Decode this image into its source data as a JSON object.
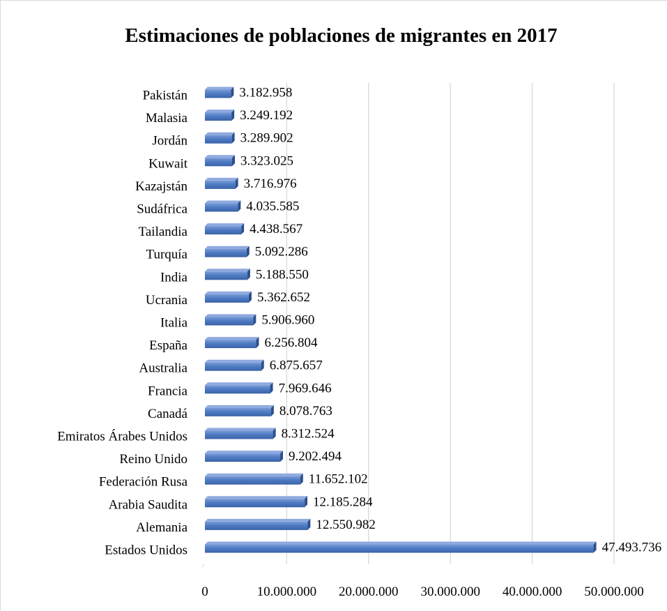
{
  "chart_data": {
    "type": "bar",
    "orientation": "horizontal",
    "title": "Estimaciones de poblaciones de migrantes en 2017",
    "xlabel": "",
    "ylabel": "",
    "xlim": [
      0,
      50000000
    ],
    "x_ticks": [
      "0",
      "10.000.000",
      "20.000.000",
      "30.000.000",
      "40.000.000",
      "50.000.000"
    ],
    "x_tick_values": [
      0,
      10000000,
      20000000,
      30000000,
      40000000,
      50000000
    ],
    "grid": true,
    "legend": "none",
    "bar_color": "#4472C4",
    "categories": [
      "Pakistán",
      "Malasia",
      "Jordán",
      "Kuwait",
      "Kazajstán",
      "Sudáfrica",
      "Tailandia",
      "Turquía",
      "India",
      "Ucrania",
      "Italia",
      "España",
      "Australia",
      "Francia",
      "Canadá",
      "Emiratos Árabes Unidos",
      "Reino Unido",
      "Federación Rusa",
      "Arabia Saudita",
      "Alemania",
      "Estados Unidos"
    ],
    "values": [
      3182958,
      3249192,
      3289902,
      3323025,
      3716976,
      4035585,
      4438567,
      5092286,
      5188550,
      5362652,
      5906960,
      6256804,
      6875657,
      7969646,
      8078763,
      8312524,
      9202494,
      11652102,
      12185284,
      12550982,
      47493736
    ],
    "data_labels": [
      "3.182.958",
      "3.249.192",
      "3.289.902",
      "3.323.025",
      "3.716.976",
      "4.035.585",
      "4.438.567",
      "5.092.286",
      "5.188.550",
      "5.362.652",
      "5.906.960",
      "6.256.804",
      "6.875.657",
      "7.969.646",
      "8.078.763",
      "8.312.524",
      "9.202.494",
      "11.652.102",
      "12.185.284",
      "12.550.982",
      "47.493.736"
    ]
  }
}
